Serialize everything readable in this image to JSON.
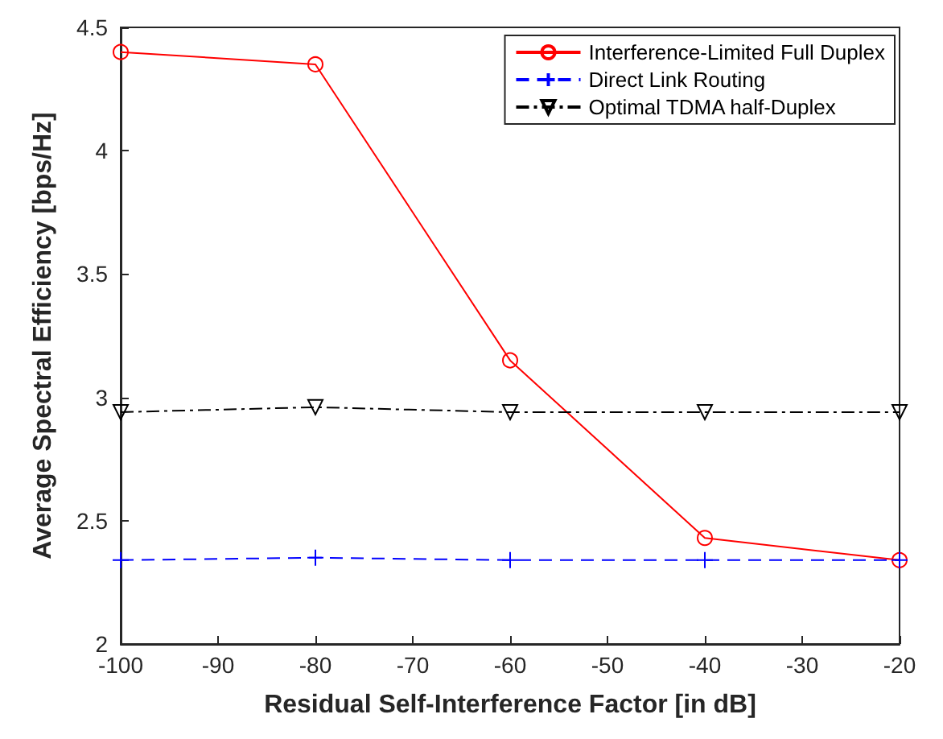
{
  "chart_data": {
    "type": "line",
    "xlabel": "Residual Self-Interference Factor [in dB]",
    "ylabel": "Average Spectral Efficiency [bps/Hz]",
    "x": [
      -100,
      -80,
      -60,
      -40,
      -20
    ],
    "series": [
      {
        "name": "Interference-Limited Full Duplex",
        "color": "#ff0000",
        "marker": "circle",
        "line_style": "solid",
        "values": [
          4.4,
          4.35,
          3.15,
          2.43,
          2.34
        ]
      },
      {
        "name": "Direct Link Routing",
        "color": "#0000ff",
        "marker": "cross",
        "line_style": "dashed",
        "values": [
          2.34,
          2.35,
          2.34,
          2.34,
          2.34
        ]
      },
      {
        "name": "Optimal TDMA half-Duplex",
        "color": "#000000",
        "marker": "triangle",
        "line_style": "dashdot",
        "values": [
          2.94,
          2.96,
          2.94,
          2.94,
          2.94
        ]
      }
    ],
    "xlim": [
      -100,
      -20
    ],
    "xticks": [
      -100,
      -90,
      -80,
      -70,
      -60,
      -50,
      -40,
      -30,
      -20
    ],
    "ylim": [
      2,
      4.5
    ],
    "yticks": [
      2,
      2.5,
      3,
      3.5,
      4,
      4.5
    ],
    "grid": false,
    "legend": "top right"
  }
}
